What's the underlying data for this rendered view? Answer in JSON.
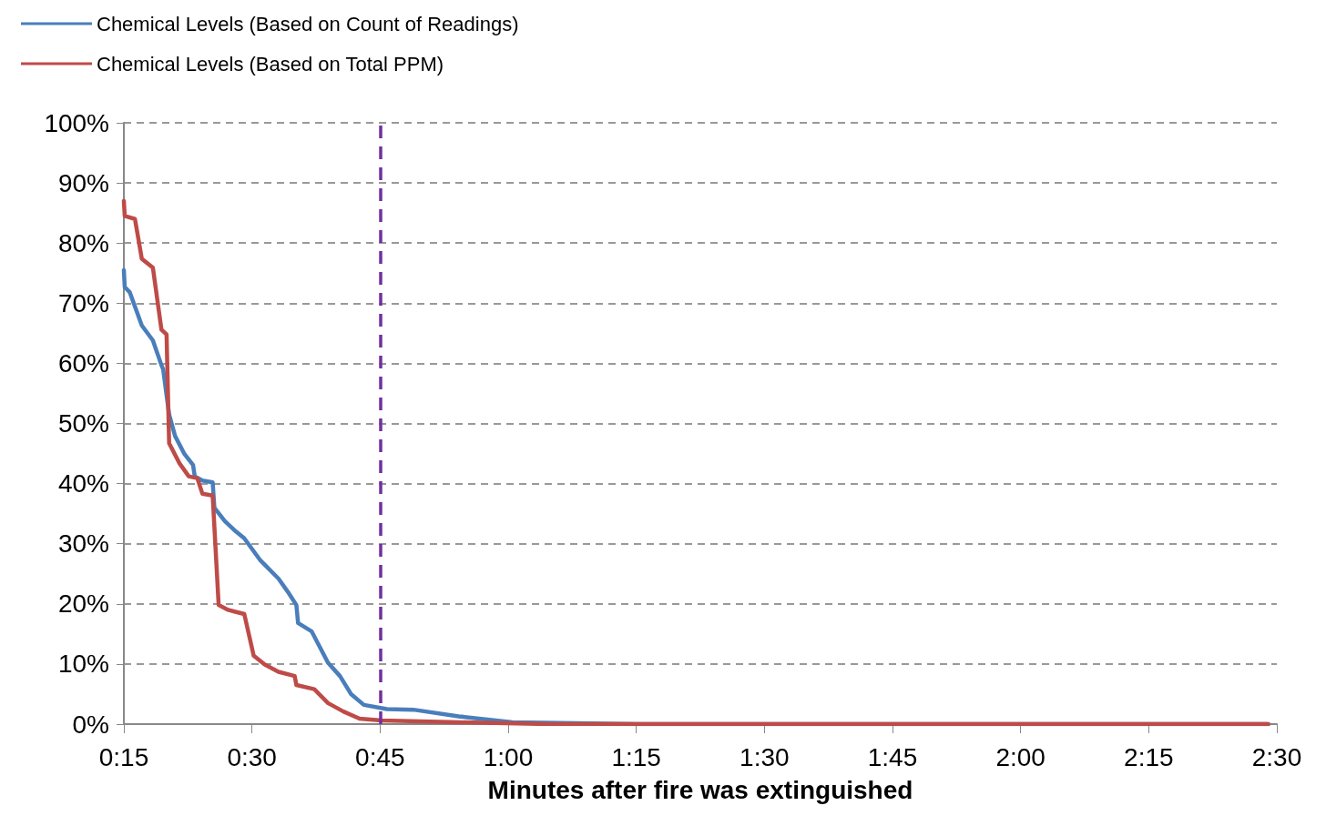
{
  "chart_data": {
    "type": "line",
    "xlabel": "Minutes after fire was extinguished",
    "xlim": [
      15,
      150
    ],
    "xticks": [
      {
        "value": 15,
        "label": "0:15"
      },
      {
        "value": 30,
        "label": "0:30"
      },
      {
        "value": 45,
        "label": "0:45"
      },
      {
        "value": 60,
        "label": "1:00"
      },
      {
        "value": 75,
        "label": "1:15"
      },
      {
        "value": 90,
        "label": "1:30"
      },
      {
        "value": 105,
        "label": "1:45"
      },
      {
        "value": 120,
        "label": "2:00"
      },
      {
        "value": 135,
        "label": "2:15"
      },
      {
        "value": 150,
        "label": "2:30"
      }
    ],
    "ylim": [
      0,
      100
    ],
    "yticks": [
      {
        "value": 0,
        "label": "0%"
      },
      {
        "value": 10,
        "label": "10%"
      },
      {
        "value": 20,
        "label": "20%"
      },
      {
        "value": 30,
        "label": "30%"
      },
      {
        "value": 40,
        "label": "40%"
      },
      {
        "value": 50,
        "label": "50%"
      },
      {
        "value": 60,
        "label": "60%"
      },
      {
        "value": 70,
        "label": "70%"
      },
      {
        "value": 80,
        "label": "80%"
      },
      {
        "value": 90,
        "label": "90%"
      },
      {
        "value": 100,
        "label": "100%"
      }
    ],
    "series": [
      {
        "name": "Chemical Levels (Based on Count of Readings)",
        "color": "#4a7ebb",
        "x": [
          15,
          15.1,
          15.7,
          17.1,
          18.4,
          19.4,
          19.6,
          20.3,
          21,
          22.1,
          23.1,
          23.3,
          24.2,
          25.4,
          25.6,
          26.8,
          27.9,
          29.1,
          31,
          33.1,
          34.2,
          35.2,
          35.4,
          37,
          38.9,
          40.3,
          41.6,
          43.1,
          45.8,
          48.9,
          54.2,
          60.5,
          75.3,
          149
        ],
        "values": [
          75.5,
          72.7,
          71.8,
          66.3,
          63.8,
          59.7,
          59,
          51.5,
          47.9,
          44.9,
          43.1,
          41.2,
          40.5,
          40.2,
          36,
          33.8,
          32.3,
          30.9,
          27.2,
          24.2,
          22,
          19.8,
          16.8,
          15.4,
          10.2,
          8,
          5,
          3.2,
          2.5,
          2.4,
          1.3,
          0.3,
          0,
          0
        ]
      },
      {
        "name": "Chemical Levels (Based on Total PPM)",
        "color": "#be4b48",
        "x": [
          15,
          15.1,
          16.3,
          17.1,
          18.4,
          19.4,
          20,
          20.3,
          21.5,
          22.6,
          23.6,
          24.2,
          25.4,
          26.1,
          27.2,
          29.1,
          30.2,
          31.5,
          33.1,
          35,
          35.2,
          37.3,
          38.9,
          40.7,
          42.6,
          45.2,
          54.2,
          64.7,
          149
        ],
        "values": [
          87,
          84.5,
          84,
          77.4,
          75.9,
          65.6,
          64.8,
          46.7,
          43.4,
          41.2,
          40.9,
          38.3,
          38,
          19.8,
          19,
          18.3,
          11.4,
          9.9,
          8.7,
          8,
          6.5,
          5.8,
          3.5,
          2.1,
          0.9,
          0.6,
          0.3,
          0,
          0
        ]
      }
    ],
    "ref_lines": [
      {
        "axis": "x",
        "value": 45,
        "color": "#7030a0",
        "line_style": "dashed"
      }
    ],
    "grid": "y",
    "legend": "top left",
    "marker": "none",
    "line_style": "solid"
  }
}
